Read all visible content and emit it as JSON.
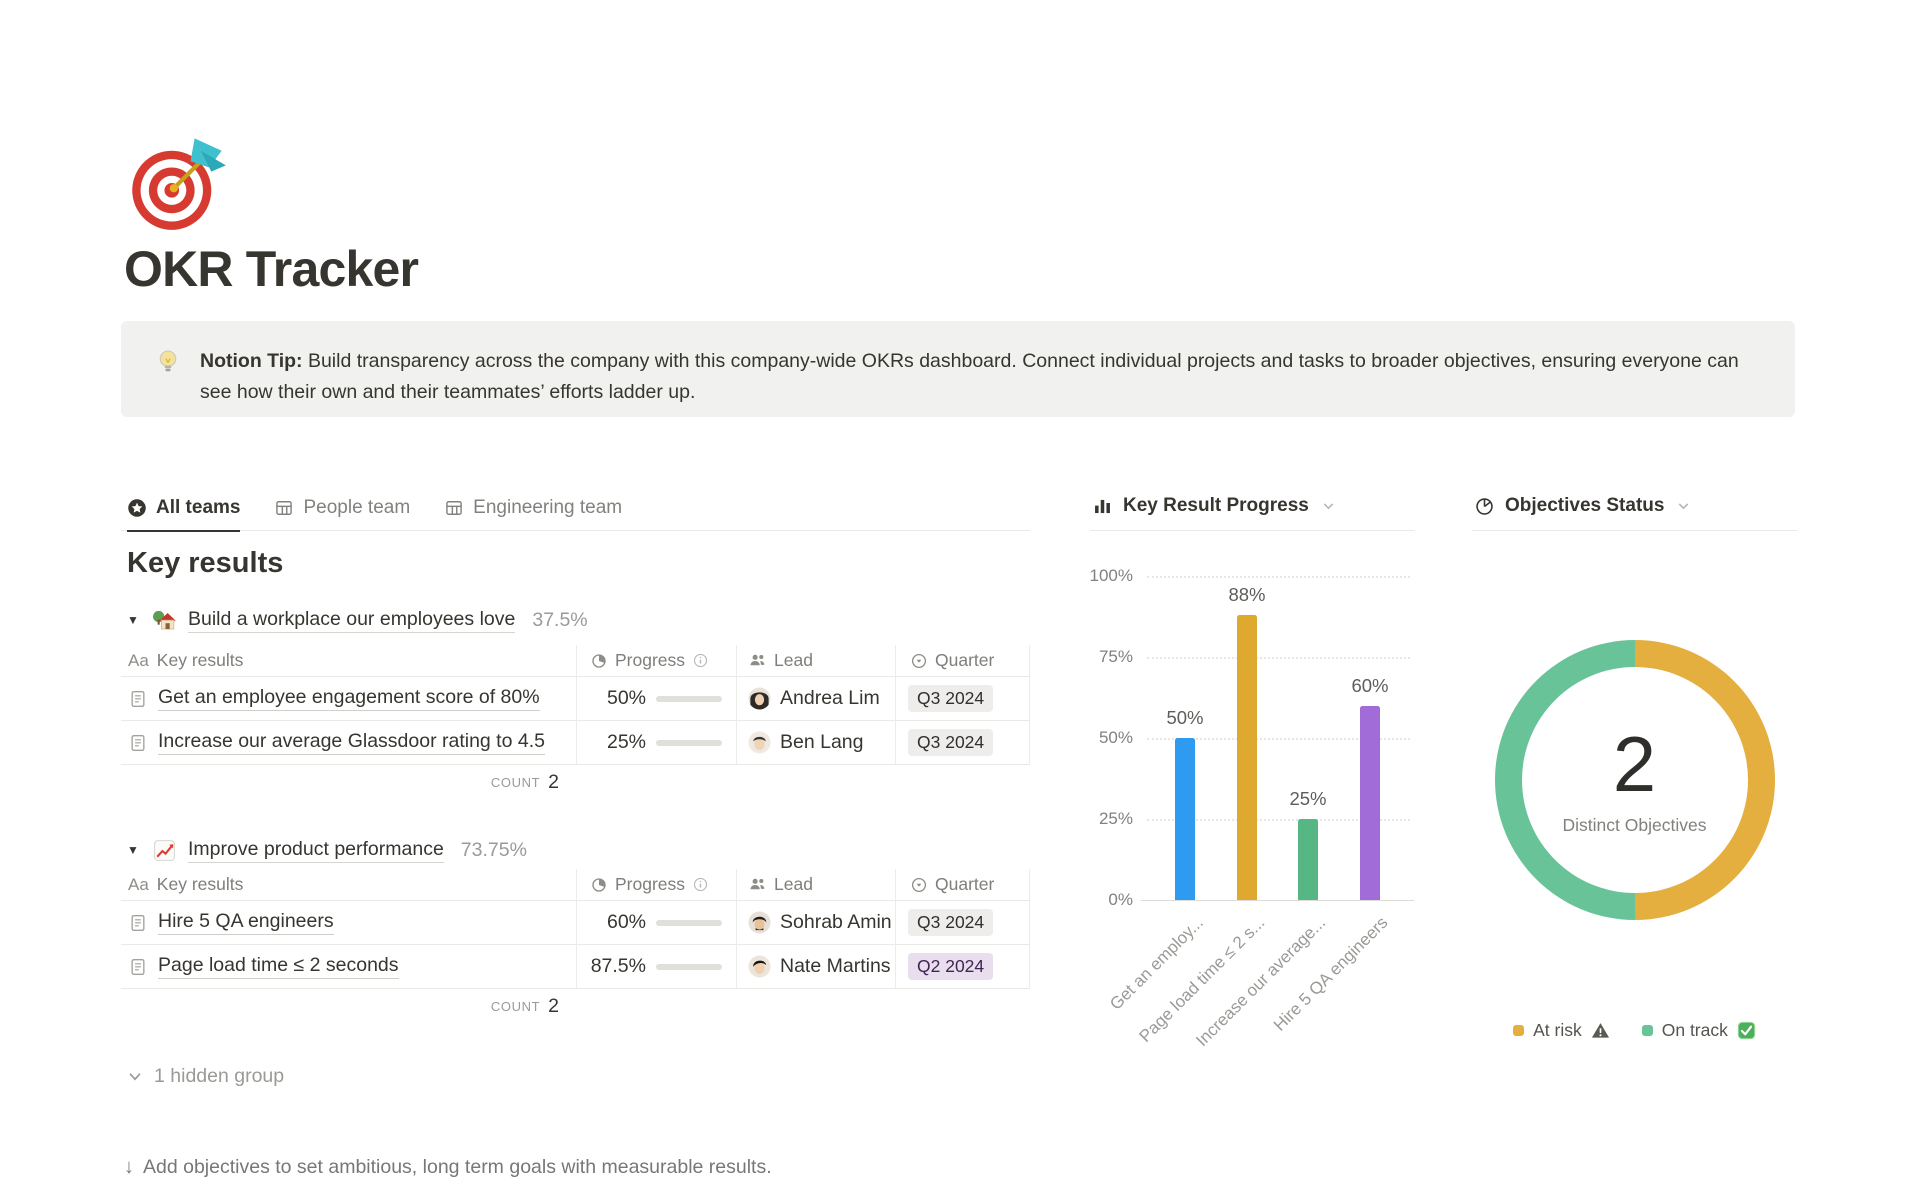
{
  "page": {
    "title": "OKR Tracker"
  },
  "callout": {
    "bold": "Notion Tip:",
    "text": " Build transparency across the company with this company-wide OKRs dashboard. Connect individual projects and tasks to broader objectives, ensuring everyone can see how their own and their teammates’ efforts ladder up."
  },
  "tabs": {
    "all": "All teams",
    "people": "People team",
    "engineering": "Engineering team"
  },
  "section": {
    "heading": "Key results",
    "count_label": "COUNT",
    "hidden_group": "1 hidden group"
  },
  "groups": [
    {
      "title": "Build a workplace our employees love",
      "percent": "37.5%",
      "count": "2",
      "header": {
        "name_icon": "Aa",
        "name": "Key results",
        "progress": "Progress",
        "lead": "Lead",
        "quarter": "Quarter"
      },
      "rows": [
        {
          "name": "Get an employee engagement score of 80%",
          "progress_label": "50%",
          "progress_value": 50,
          "lead": "Andrea Lim",
          "quarter": "Q3 2024",
          "quarter_variant": "gray"
        },
        {
          "name": "Increase our average Glassdoor rating to 4.5",
          "progress_label": "25%",
          "progress_value": 25,
          "lead": "Ben Lang",
          "quarter": "Q3 2024",
          "quarter_variant": "gray"
        }
      ]
    },
    {
      "title": "Improve product performance",
      "percent": "73.75%",
      "count": "2",
      "header": {
        "name_icon": "Aa",
        "name": "Key results",
        "progress": "Progress",
        "lead": "Lead",
        "quarter": "Quarter"
      },
      "rows": [
        {
          "name": "Hire 5 QA engineers",
          "progress_label": "60%",
          "progress_value": 60,
          "lead": "Sohrab Amin",
          "quarter": "Q3 2024",
          "quarter_variant": "gray"
        },
        {
          "name": "Page load time ≤ 2 seconds",
          "progress_label": "87.5%",
          "progress_value": 87.5,
          "lead": "Nate Martins",
          "quarter": "Q2 2024",
          "quarter_variant": "purple"
        }
      ]
    }
  ],
  "charts": {
    "bar_title": "Key Result Progress",
    "donut_title": "Objectives Status"
  },
  "chart_data": [
    {
      "type": "bar",
      "title": "Key Result Progress",
      "categories": [
        "Get an employ...",
        "Page load time ≤ 2 s...",
        "Increase our average...",
        "Hire 5 QA engineers"
      ],
      "values": [
        50,
        88,
        25,
        60
      ],
      "value_labels": [
        "50%",
        "88%",
        "25%",
        "60%"
      ],
      "bar_colors": [
        "#2E9BF0",
        "#DFA82F",
        "#57B784",
        "#A16BD8"
      ],
      "y_ticks": [
        "100%",
        "75%",
        "50%",
        "25%",
        "0%"
      ],
      "ylim": [
        0,
        100
      ],
      "grid": "dotted-horizontal",
      "xlabel": "",
      "ylabel": ""
    },
    {
      "type": "pie",
      "title": "Objectives Status",
      "slices": [
        {
          "label": "At risk",
          "value": 1,
          "color": "#E5AF3F"
        },
        {
          "label": "On track",
          "value": 1,
          "color": "#69C398"
        }
      ],
      "center_value": "2",
      "center_label": "Distinct Objectives",
      "legend_position": "bottom"
    }
  ],
  "colors": {
    "progress_fill": "#6E9F82",
    "badge_gray_bg": "#EEEDEB",
    "badge_purple_bg": "#E8DEEE",
    "badge_purple_text": "#412454",
    "callout_bg": "#F1F1EF",
    "text_main": "#37352F",
    "text_muted": "#9B9A97"
  },
  "footer": {
    "text": "Add objectives to set ambitious, long term goals with measurable results."
  }
}
